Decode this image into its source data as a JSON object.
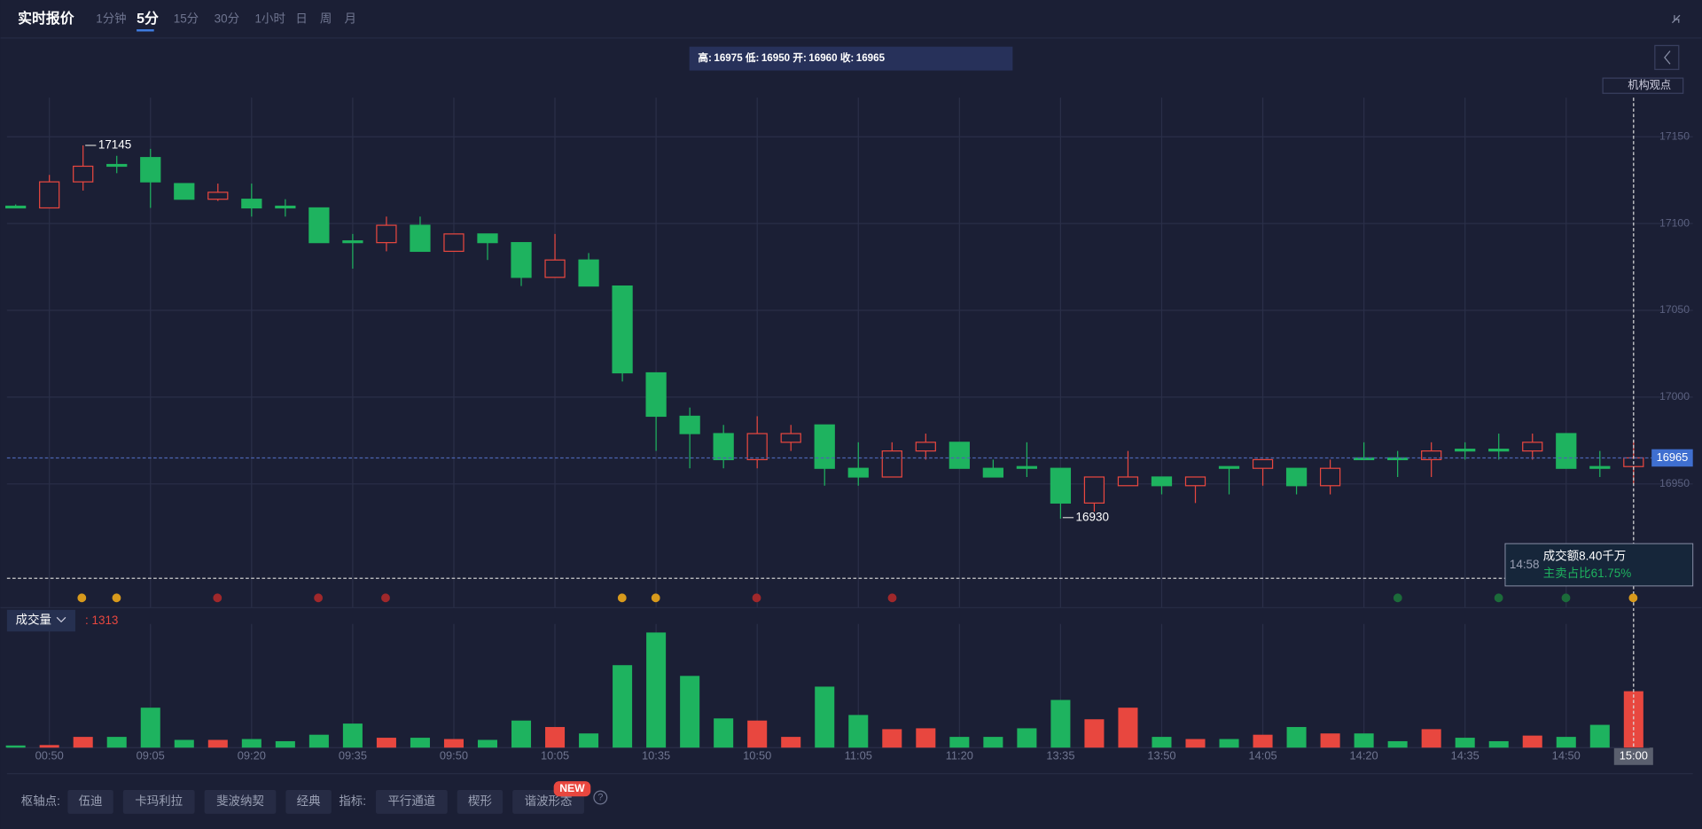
{
  "header": {
    "title": "实时报价",
    "tabs": [
      "1分钟",
      "5分",
      "15分",
      "30分",
      "1小时",
      "日",
      "周",
      "月"
    ],
    "active_tab": 1
  },
  "info_bar": [
    {
      "label": "高:",
      "value": 16975
    },
    {
      "label": "低:",
      "value": 16950
    },
    {
      "label": "开:",
      "value": 16960
    },
    {
      "label": "收:",
      "value": 16965
    }
  ],
  "side_button": "机构观点",
  "tooltip": {
    "time": "14:58",
    "amount": "成交额8.40千万",
    "ratio": "主卖占比61.75%"
  },
  "volume_selector": "成交量",
  "volume_prefix": ":",
  "toolbar": {
    "pivot_label": "枢轴点:",
    "pivots": [
      "伍迪",
      "卡玛利拉",
      "斐波纳契",
      "经典"
    ],
    "indicator_label": "指标:",
    "indicators": [
      "平行通道",
      "楔形",
      "谐波形态"
    ],
    "badge": "NEW",
    "help": "?"
  },
  "chart_data": {
    "type": "candlestick",
    "categories": [
      null,
      "00:50",
      null,
      null,
      "09:05",
      null,
      null,
      "09:20",
      null,
      null,
      "09:35",
      null,
      null,
      "09:50",
      null,
      null,
      "10:05",
      null,
      null,
      "10:35",
      null,
      null,
      "10:50",
      null,
      null,
      "11:05",
      null,
      null,
      "11:20",
      null,
      null,
      "13:35",
      null,
      null,
      "13:50",
      null,
      null,
      "14:05",
      null,
      null,
      "14:20",
      null,
      null,
      "14:35",
      null,
      null,
      "14:50",
      null,
      "15:00"
    ],
    "open": [
      17110,
      17109,
      17124,
      17134,
      17138,
      17123,
      17114,
      17114,
      17110,
      17109,
      17090,
      17089,
      17099,
      17084,
      17094,
      17089,
      17069,
      17079,
      17064,
      17014,
      16989,
      16979,
      16964,
      16974,
      16984,
      16959,
      16954,
      16969,
      16974,
      16959,
      16960,
      16959,
      16939,
      16949,
      16954,
      16949,
      16960,
      16959,
      16959,
      16949,
      16965,
      16965,
      16964,
      16970,
      16970,
      16969,
      16979,
      16960,
      16960
    ],
    "high": [
      17111,
      17128,
      17145,
      17139,
      17143,
      17123,
      17123,
      17123,
      17114,
      17109,
      17094,
      17104,
      17104,
      17094,
      17094,
      17089,
      17094,
      17083,
      17064,
      17014,
      16994,
      16984,
      16989,
      16984,
      16984,
      16974,
      16974,
      16979,
      16974,
      16964,
      16974,
      16959,
      16954,
      16969,
      16954,
      16954,
      16960,
      16964,
      16959,
      16964,
      16974,
      16969,
      16974,
      16974,
      16979,
      16979,
      16979,
      16969,
      16975
    ],
    "low": [
      17109,
      17109,
      17119,
      17129,
      17109,
      17114,
      17113,
      17104,
      17104,
      17089,
      17074,
      17084,
      17084,
      17084,
      17079,
      17064,
      17069,
      17064,
      17009,
      16969,
      16959,
      16959,
      16959,
      16969,
      16949,
      16949,
      16954,
      16964,
      16959,
      16954,
      16954,
      16930,
      16934,
      16949,
      16944,
      16939,
      16944,
      16949,
      16944,
      16944,
      16964,
      16954,
      16954,
      16964,
      16964,
      16964,
      16959,
      16954,
      16950
    ],
    "close": [
      17109,
      17124,
      17133,
      17133,
      17124,
      17114,
      17118,
      17109,
      17109,
      17089,
      17089,
      17099,
      17084,
      17094,
      17089,
      17069,
      17079,
      17064,
      17014,
      16989,
      16979,
      16964,
      16979,
      16979,
      16959,
      16954,
      16969,
      16974,
      16959,
      16954,
      16959,
      16939,
      16954,
      16954,
      16949,
      16954,
      16959,
      16964,
      16949,
      16959,
      16964,
      16964,
      16969,
      16969,
      16969,
      16974,
      16959,
      16959,
      16965
    ],
    "volume": [
      50,
      60,
      250,
      250,
      930,
      180,
      180,
      200,
      150,
      300,
      560,
      230,
      230,
      200,
      180,
      630,
      480,
      330,
      1920,
      2680,
      1670,
      680,
      630,
      250,
      1420,
      760,
      430,
      450,
      250,
      250,
      450,
      1110,
      660,
      930,
      250,
      200,
      200,
      300,
      480,
      330,
      330,
      150,
      430,
      230,
      150,
      280,
      250,
      530,
      1313
    ],
    "up_color": "#e8473f",
    "down_color": "#1eb35f",
    "ylim": [
      16897.5,
      17172.5
    ],
    "yticks": [
      16950,
      17000,
      17050,
      17100,
      17150
    ],
    "volume_lim": [
      0,
      2880
    ],
    "grid": true,
    "high_annotation": 17145,
    "low_annotation": 16930,
    "current_price": 16965
  }
}
